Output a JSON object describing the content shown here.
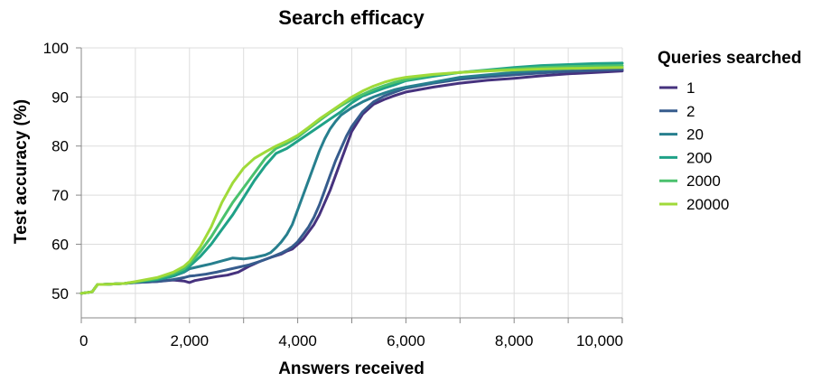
{
  "chart_data": {
    "type": "line",
    "title": "Search efficacy",
    "xlabel": "Answers received",
    "ylabel": "Test accuracy (%)",
    "xlim": [
      0,
      10000
    ],
    "ylim": [
      45,
      100
    ],
    "xticks": [
      0,
      2000,
      4000,
      6000,
      8000,
      10000
    ],
    "xtick_labels": [
      "0",
      "2,000",
      "4,000",
      "6,000",
      "8,000",
      "10,000"
    ],
    "yticks": [
      50,
      60,
      70,
      80,
      90,
      100
    ],
    "ytick_labels": [
      "50",
      "60",
      "70",
      "80",
      "90",
      "100"
    ],
    "grid": true,
    "legend": {
      "title": "Queries searched",
      "placement": "right"
    },
    "series": [
      {
        "name": "1",
        "color": "#46327e",
        "x": [
          0,
          200,
          300,
          400,
          800,
          1000,
          1400,
          1700,
          1900,
          2000,
          2100,
          2300,
          2500,
          2700,
          2900,
          3100,
          3300,
          3500,
          3700,
          3800,
          3900,
          4000,
          4100,
          4200,
          4300,
          4400,
          4500,
          4600,
          4700,
          4800,
          4900,
          5000,
          5200,
          5400,
          5600,
          5800,
          6000,
          6500,
          7000,
          7500,
          8000,
          8500,
          9000,
          9500,
          10000
        ],
        "y": [
          50,
          50.3,
          51.8,
          51.8,
          52,
          52.2,
          52.4,
          52.7,
          52.5,
          52.2,
          52.6,
          53,
          53.4,
          53.7,
          54.3,
          55.5,
          56.5,
          57.3,
          58,
          58.6,
          59,
          60,
          61,
          62.5,
          64,
          66,
          68.5,
          71,
          74,
          77,
          80,
          83,
          86.5,
          88.5,
          89.5,
          90.3,
          91,
          92,
          92.8,
          93.4,
          93.8,
          94.3,
          94.7,
          95,
          95.3
        ]
      },
      {
        "name": "2",
        "color": "#365c8d",
        "x": [
          0,
          200,
          300,
          400,
          800,
          1000,
          1400,
          1700,
          1900,
          2000,
          2100,
          2300,
          2500,
          2700,
          2900,
          3100,
          3300,
          3500,
          3700,
          3800,
          3900,
          4000,
          4100,
          4200,
          4300,
          4400,
          4500,
          4600,
          4700,
          4800,
          4900,
          5000,
          5200,
          5400,
          5600,
          5800,
          6000,
          6500,
          7000,
          7500,
          8000,
          8500,
          9000,
          9500,
          10000
        ],
        "y": [
          50,
          50.3,
          51.8,
          51.8,
          52,
          52.2,
          52.4,
          52.8,
          53.2,
          53.5,
          53.6,
          53.9,
          54.3,
          54.8,
          55.3,
          55.8,
          56.5,
          57.3,
          58.2,
          58.8,
          59.5,
          60.5,
          62,
          63.5,
          65.5,
          68,
          71,
          74,
          77,
          79.5,
          82,
          84,
          87,
          89,
          90.2,
          91,
          91.8,
          92.8,
          93.6,
          94.1,
          94.5,
          94.9,
          95.2,
          95.4,
          95.6
        ]
      },
      {
        "name": "20",
        "color": "#277f8e",
        "x": [
          0,
          200,
          300,
          400,
          800,
          1000,
          1400,
          1700,
          1900,
          2000,
          2200,
          2400,
          2600,
          2800,
          3000,
          3200,
          3400,
          3500,
          3600,
          3700,
          3800,
          3900,
          4000,
          4100,
          4200,
          4300,
          4400,
          4500,
          4600,
          4700,
          4800,
          5000,
          5200,
          5400,
          5600,
          5800,
          6000,
          6500,
          7000,
          7500,
          8000,
          8500,
          9000,
          9500,
          10000
        ],
        "y": [
          50,
          50.3,
          51.8,
          51.8,
          52,
          52.3,
          52.8,
          53.5,
          54.3,
          55,
          55.5,
          56,
          56.6,
          57.2,
          57,
          57.3,
          57.8,
          58.3,
          59.3,
          60.5,
          62,
          64,
          67,
          70,
          73,
          76,
          79,
          81.5,
          83.5,
          85,
          86.3,
          87.8,
          89,
          90,
          90.8,
          91.5,
          92,
          93,
          94,
          94.5,
          95,
          95.4,
          95.7,
          95.9,
          96
        ]
      },
      {
        "name": "200",
        "color": "#1fa187",
        "x": [
          0,
          200,
          300,
          400,
          800,
          1000,
          1400,
          1700,
          1900,
          2000,
          2200,
          2400,
          2600,
          2800,
          3000,
          3200,
          3400,
          3600,
          3800,
          4000,
          4200,
          4400,
          4600,
          4800,
          5000,
          5200,
          5400,
          5600,
          5800,
          6000,
          6500,
          7000,
          7500,
          8000,
          8500,
          9000,
          9500,
          10000
        ],
        "y": [
          50,
          50.3,
          51.8,
          51.8,
          52,
          52.3,
          52.8,
          53.5,
          54.5,
          55.5,
          57.5,
          60,
          63,
          66,
          69.5,
          73,
          76,
          78.5,
          79.5,
          81,
          82.5,
          84,
          85.5,
          87,
          88.8,
          90.2,
          91,
          91.8,
          92.5,
          93.3,
          94.2,
          95,
          95.5,
          96,
          96.4,
          96.6,
          96.8,
          96.9
        ]
      },
      {
        "name": "2000",
        "color": "#4ac16d",
        "x": [
          0,
          200,
          300,
          400,
          800,
          1000,
          1400,
          1700,
          1900,
          2000,
          2200,
          2400,
          2600,
          2800,
          3000,
          3200,
          3400,
          3600,
          3800,
          4000,
          4200,
          4400,
          4600,
          4800,
          5000,
          5200,
          5400,
          5600,
          5800,
          6000,
          6500,
          7000,
          7500,
          8000,
          8500,
          9000,
          9500,
          10000
        ],
        "y": [
          50,
          50.3,
          51.8,
          51.8,
          52,
          52.3,
          53,
          54,
          55,
          56,
          58.5,
          61.5,
          65,
          68.5,
          71.5,
          74.5,
          77.5,
          79.5,
          80.5,
          81.8,
          83.5,
          85.2,
          86.8,
          88.2,
          89.5,
          90.5,
          91.5,
          92.3,
          93,
          93.5,
          94.5,
          95,
          95.4,
          95.7,
          96,
          96.2,
          96.3,
          96.4
        ]
      },
      {
        "name": "20000",
        "color": "#a0da39",
        "x": [
          0,
          200,
          300,
          400,
          800,
          1000,
          1400,
          1700,
          1900,
          2000,
          2200,
          2400,
          2600,
          2800,
          3000,
          3200,
          3400,
          3600,
          3800,
          4000,
          4200,
          4400,
          4600,
          4800,
          5000,
          5200,
          5400,
          5600,
          5800,
          6000,
          6500,
          7000,
          7500,
          8000,
          8500,
          9000,
          9500,
          10000
        ],
        "y": [
          50,
          50.3,
          51.8,
          51.8,
          52,
          52.4,
          53.2,
          54.3,
          55.5,
          56.5,
          59.5,
          63.5,
          68.5,
          72.5,
          75.5,
          77.5,
          78.8,
          80,
          81,
          82.2,
          83.8,
          85.5,
          87,
          88.5,
          90,
          91.2,
          92.2,
          93,
          93.6,
          94,
          94.6,
          95,
          95.3,
          95.5,
          95.7,
          95.8,
          95.9,
          96
        ]
      }
    ]
  }
}
